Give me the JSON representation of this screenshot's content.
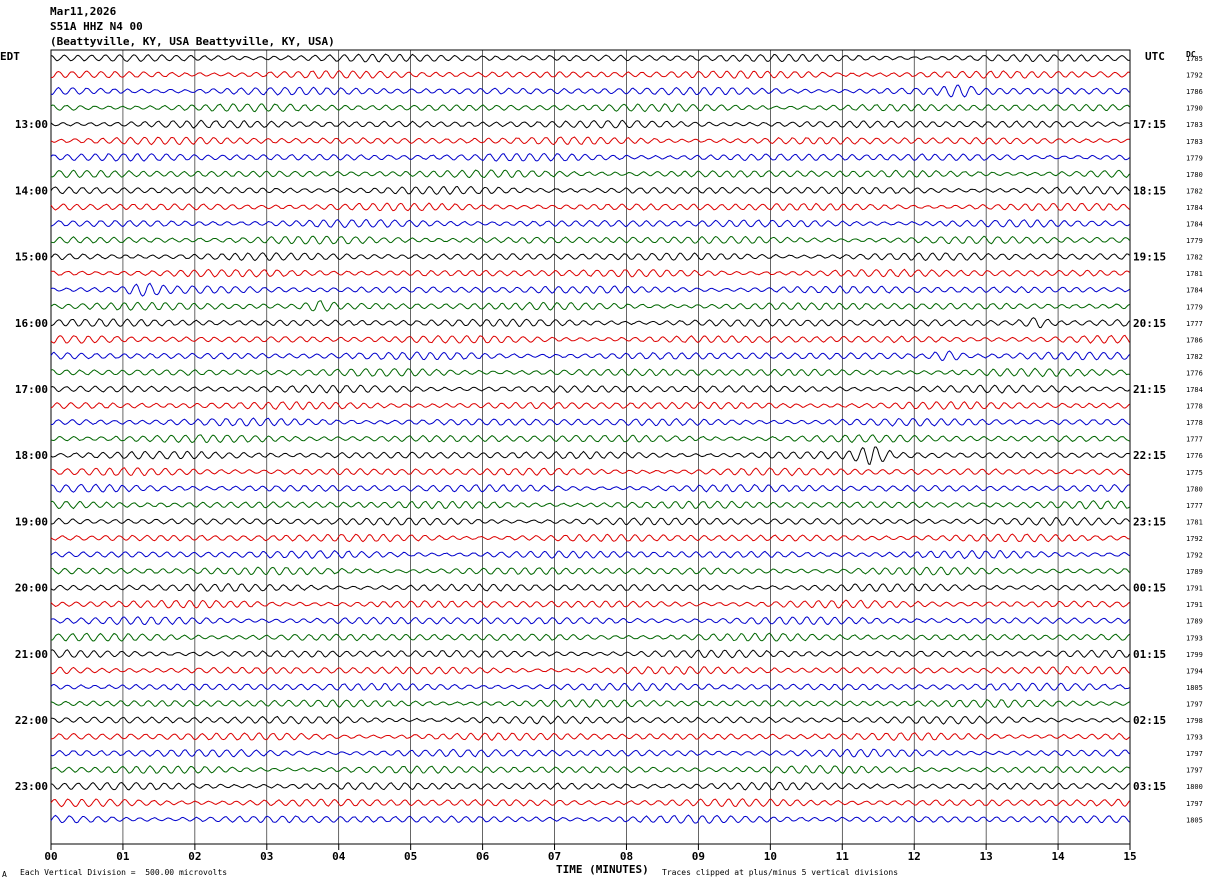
{
  "header": {
    "date": "Mar11,2026",
    "station": "S51A HHZ N4 00",
    "location": "(Beattyville, KY, USA Beattyville, KY, USA)"
  },
  "left_zone": "EDT",
  "right_zone": "UTC",
  "right_col_label": "DC",
  "footer": {
    "corner_mark": "A",
    "scale": "Each Vertical Division =  500.00 microvolts",
    "clip": "Traces clipped at plus/minus 5 vertical divisions"
  },
  "colors": {
    "cycle": [
      "#000000",
      "#dd0000",
      "#0000cc",
      "#006600"
    ],
    "grid": "#000000"
  },
  "chart_data": {
    "type": "line",
    "title": "",
    "xlabel": "TIME (MINUTES)",
    "xlim": [
      0,
      15
    ],
    "x_ticks": [
      "00",
      "01",
      "02",
      "03",
      "04",
      "05",
      "06",
      "07",
      "08",
      "09",
      "10",
      "11",
      "12",
      "13",
      "14",
      "15"
    ],
    "rows_per_hour": 4,
    "left_hour_labels": [
      "13:00",
      "14:00",
      "15:00",
      "16:00",
      "17:00",
      "18:00",
      "19:00",
      "20:00",
      "21:00",
      "22:00",
      "23:00"
    ],
    "right_hour_labels": [
      "17:15",
      "18:15",
      "19:15",
      "20:15",
      "21:15",
      "22:15",
      "23:15",
      "00:15",
      "01:15",
      "02:15",
      "03:15"
    ],
    "first_labeled_row": 4,
    "dc_offsets": [
      1785,
      1792,
      1786,
      1790,
      1783,
      1783,
      1779,
      1780,
      1782,
      1784,
      1784,
      1779,
      1782,
      1781,
      1784,
      1779,
      1777,
      1786,
      1782,
      1776,
      1784,
      1778,
      1778,
      1777,
      1776,
      1775,
      1780,
      1777,
      1781,
      1792,
      1792,
      1789,
      1791,
      1791,
      1789,
      1793,
      1799,
      1794,
      1805,
      1797,
      1798,
      1793,
      1797,
      1797,
      1800,
      1797,
      1805
    ],
    "events": [
      {
        "row": 14,
        "minute": 1.3,
        "note": "burst"
      },
      {
        "row": 15,
        "minute": 3.75,
        "note": "burst"
      },
      {
        "row": 16,
        "minute": 13.7,
        "note": "burst"
      },
      {
        "row": 18,
        "minute": 12.45,
        "note": "burst"
      },
      {
        "row": 24,
        "minute": 11.4,
        "note": "spike"
      },
      {
        "row": 2,
        "minute": 12.6,
        "note": "burst"
      }
    ]
  }
}
